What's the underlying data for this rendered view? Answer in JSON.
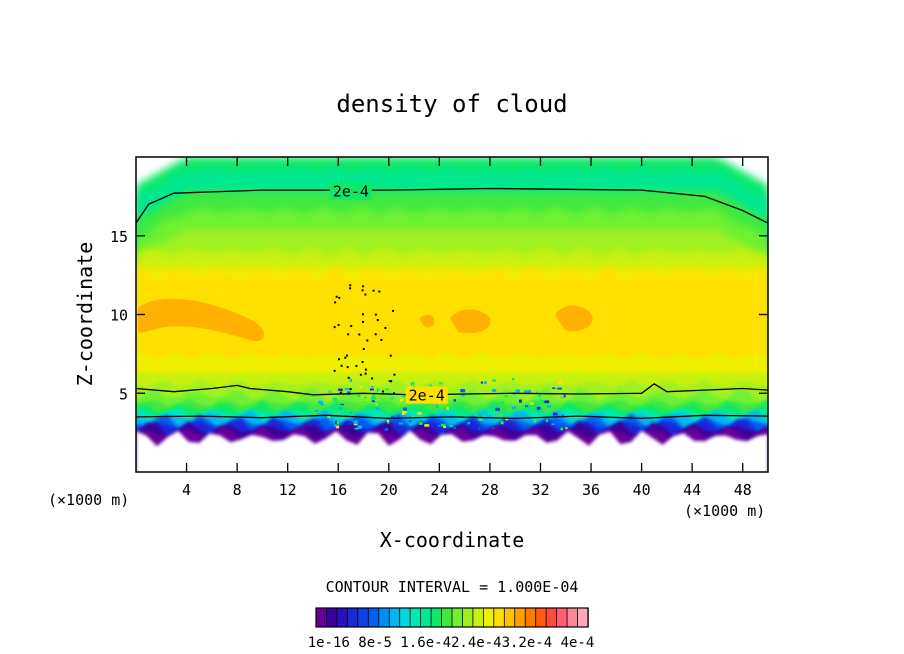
{
  "chart_data": {
    "type": "contour",
    "title": "density of cloud",
    "xlabel": "X-coordinate",
    "ylabel": "Z-coordinate",
    "x_unit_left": "(×1000 m)",
    "x_unit_right": "(×1000 m)",
    "xlim": [
      0,
      50
    ],
    "ylim": [
      0,
      20
    ],
    "x_ticks": [
      4,
      8,
      12,
      16,
      20,
      24,
      28,
      32,
      36,
      40,
      44,
      48
    ],
    "y_ticks": [
      5,
      10,
      15
    ],
    "contour_interval_text": "CONTOUR INTERVAL = 1.000E-04",
    "contour_labels": [
      {
        "text": "2e-4",
        "x": 17.0,
        "z": 17.8
      },
      {
        "text": "2e-4",
        "x": 23.0,
        "z": 4.85
      }
    ],
    "contour_lines": [
      {
        "level": "2e-4",
        "points": [
          [
            0,
            15.8
          ],
          [
            1,
            17.0
          ],
          [
            3,
            17.7
          ],
          [
            10,
            17.9
          ],
          [
            20,
            17.9
          ],
          [
            28,
            18.0
          ],
          [
            40,
            17.9
          ],
          [
            45,
            17.5
          ],
          [
            48,
            16.6
          ],
          [
            50,
            15.8
          ]
        ]
      },
      {
        "level": "2e-4",
        "points": [
          [
            0,
            5.3
          ],
          [
            3,
            5.1
          ],
          [
            6,
            5.3
          ],
          [
            8,
            5.5
          ],
          [
            9,
            5.3
          ],
          [
            12,
            5.1
          ],
          [
            14,
            4.9
          ],
          [
            18,
            5.0
          ],
          [
            22,
            4.9
          ],
          [
            26,
            4.95
          ],
          [
            30,
            5.0
          ],
          [
            35,
            4.95
          ],
          [
            40,
            5.0
          ],
          [
            41,
            5.6
          ],
          [
            42,
            5.1
          ],
          [
            45,
            5.2
          ],
          [
            48,
            5.3
          ],
          [
            50,
            5.2
          ]
        ]
      },
      {
        "level": "1e-4",
        "points": [
          [
            0,
            3.5
          ],
          [
            5,
            3.55
          ],
          [
            10,
            3.45
          ],
          [
            15,
            3.6
          ],
          [
            20,
            3.4
          ],
          [
            25,
            3.5
          ],
          [
            30,
            3.4
          ],
          [
            35,
            3.55
          ],
          [
            40,
            3.4
          ],
          [
            45,
            3.6
          ],
          [
            50,
            3.55
          ]
        ]
      }
    ],
    "colorbar": {
      "colors": [
        "#660099",
        "#3e0099",
        "#2a10c0",
        "#1a28d8",
        "#1040e8",
        "#0060f0",
        "#0090f4",
        "#00b8f0",
        "#00d8e0",
        "#00e8b8",
        "#00e890",
        "#10e868",
        "#40e840",
        "#70f030",
        "#a0f020",
        "#c8f010",
        "#eef000",
        "#ffe000",
        "#ffc000",
        "#ff9e00",
        "#ff7a00",
        "#ff5a10",
        "#ff4a40",
        "#ff6070",
        "#ff8898",
        "#ffa8b8"
      ],
      "labels": [
        "1e-16",
        "8e-5",
        "1.6e-4",
        "2.4e-4",
        "3.2e-4",
        "4e-4"
      ],
      "label_text": "1e-16 8e-5 1.6e-42.4e-43.2e-4 4e-4"
    }
  }
}
